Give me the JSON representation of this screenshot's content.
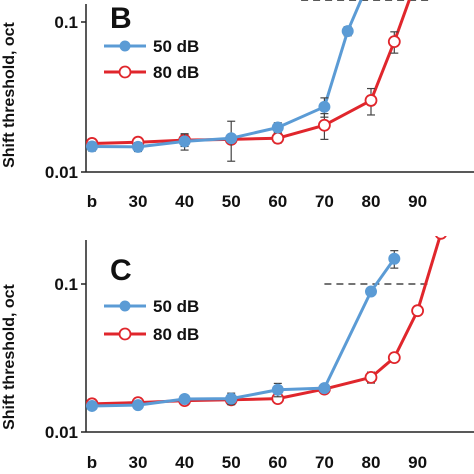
{
  "chart_data": [
    {
      "panel": "B",
      "type": "line",
      "ylabel": "Shift threshold, oct",
      "yscale": "log",
      "ylim": [
        0.01,
        0.2
      ],
      "yticks": [
        "0.01",
        "0.1"
      ],
      "xcategories": [
        "b",
        "30",
        "40",
        "50",
        "60",
        "70",
        "80",
        "90"
      ],
      "legend": "top-left",
      "reference_line": {
        "y": 0.14,
        "x_from": 65,
        "x_to": 93,
        "style": "dashed"
      },
      "series": [
        {
          "name": "50 dB",
          "color": "#5b9bd5",
          "marker": "filled-circle",
          "x": [
            "b",
            30,
            40,
            50,
            60,
            70,
            75,
            80
          ],
          "y": [
            0.0148,
            0.0147,
            0.016,
            0.0168,
            0.0198,
            0.0272,
            0.087,
            0.2
          ],
          "err": [
            0.001,
            0.001,
            0.002,
            0.005,
            0.0015,
            0.004,
            0.006,
            0.01
          ]
        },
        {
          "name": "80 dB",
          "color": "#e0262c",
          "marker": "open-circle",
          "x": [
            "b",
            30,
            40,
            50,
            60,
            70,
            80,
            85,
            90
          ],
          "y": [
            0.0155,
            0.0158,
            0.0163,
            0.0165,
            0.0168,
            0.0205,
            0.03,
            0.074,
            0.2
          ],
          "err": [
            0.001,
            0.001,
            0.0015,
            0.001,
            0.0012,
            0.004,
            0.006,
            0.012,
            0.01
          ]
        }
      ]
    },
    {
      "panel": "C",
      "type": "line",
      "ylabel": "Shift threshold, oct",
      "yscale": "log",
      "ylim": [
        0.01,
        0.22
      ],
      "yticks": [
        "0.01",
        "0.1"
      ],
      "xcategories": [
        "b",
        "30",
        "40",
        "50",
        "60",
        "70",
        "80",
        "90"
      ],
      "legend": "top-left",
      "reference_line": {
        "y": 0.1,
        "x_from": 70,
        "x_to": 93,
        "style": "dashed"
      },
      "series": [
        {
          "name": "50 dB",
          "color": "#5b9bd5",
          "marker": "filled-circle",
          "x": [
            "b",
            30,
            40,
            50,
            60,
            70,
            80,
            85
          ],
          "y": [
            0.015,
            0.0152,
            0.0167,
            0.0168,
            0.0193,
            0.0198,
            0.089,
            0.148
          ],
          "err": [
            0.0005,
            0.0005,
            0.001,
            0.0015,
            0.002,
            0.001,
            0.004,
            0.02
          ]
        },
        {
          "name": "80 dB",
          "color": "#e0262c",
          "marker": "open-circle",
          "x": [
            "b",
            30,
            40,
            50,
            60,
            70,
            80,
            85,
            90,
            95
          ],
          "y": [
            0.0155,
            0.0158,
            0.0163,
            0.0165,
            0.0168,
            0.0195,
            0.0234,
            0.0318,
            0.066,
            0.22
          ],
          "err": [
            0.0005,
            0.0005,
            0.0005,
            0.0005,
            0.0005,
            0.0005,
            0.002,
            0.002,
            0.003,
            0.01
          ]
        }
      ]
    }
  ]
}
